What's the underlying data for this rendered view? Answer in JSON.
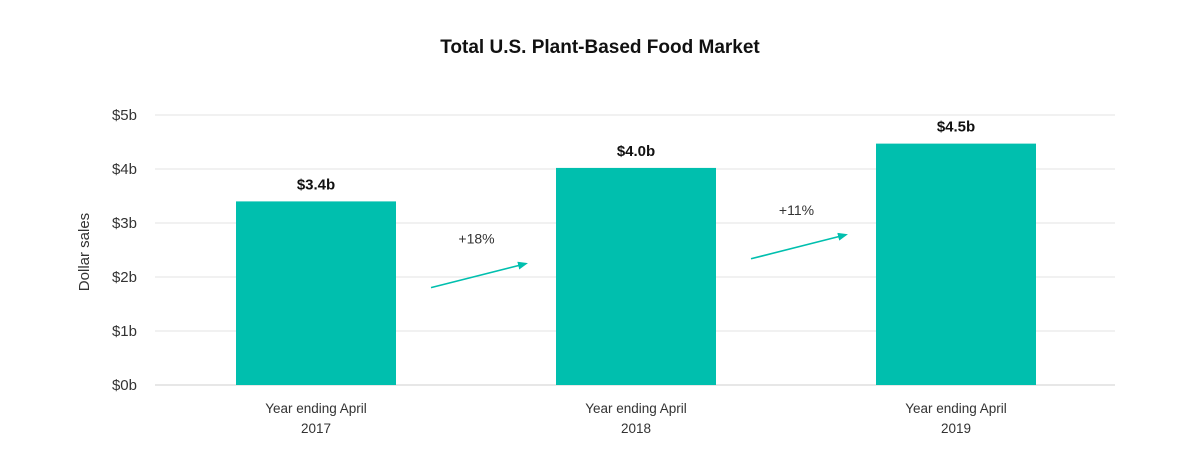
{
  "chart_data": {
    "type": "bar",
    "title": "Total U.S. Plant-Based Food Market",
    "ylabel": "Dollar sales",
    "xlabel": "",
    "ylim": [
      0,
      5
    ],
    "yticks": [
      0,
      1,
      2,
      3,
      4,
      5
    ],
    "ytick_labels": [
      "$0b",
      "$1b",
      "$2b",
      "$3b",
      "$4b",
      "$5b"
    ],
    "grid": true,
    "categories": [
      [
        "Year ending April",
        "2017"
      ],
      [
        "Year ending April",
        "2018"
      ],
      [
        "Year ending April",
        "2019"
      ]
    ],
    "values": [
      3.4,
      4.02,
      4.47
    ],
    "data_labels": [
      "$3.4b",
      "$4.0b",
      "$4.5b"
    ],
    "bar_color": "#00bfae",
    "growth_annotations": [
      {
        "from": 0,
        "to": 1,
        "label": "+18%"
      },
      {
        "from": 1,
        "to": 2,
        "label": "+11%"
      }
    ]
  }
}
